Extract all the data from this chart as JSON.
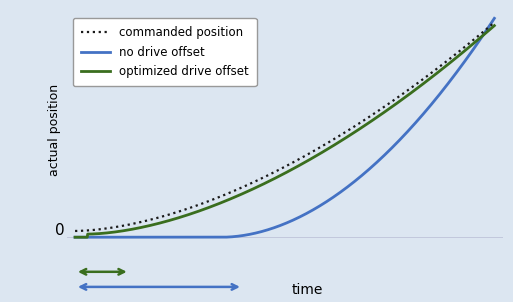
{
  "bg_color": "#dce6f1",
  "plot_bg": "#dce6f1",
  "commanded_color": "#1a1a1a",
  "no_offset_color": "#4472c4",
  "opt_offset_color": "#3a6e1e",
  "ylabel": "actual position",
  "xlabel": "time",
  "zero_label": "0",
  "legend_labels": [
    "commanded position",
    "no drive offset",
    "optimized drive offset"
  ],
  "arrow_green_color": "#3a6e1e",
  "arrow_blue_color": "#4472c4"
}
